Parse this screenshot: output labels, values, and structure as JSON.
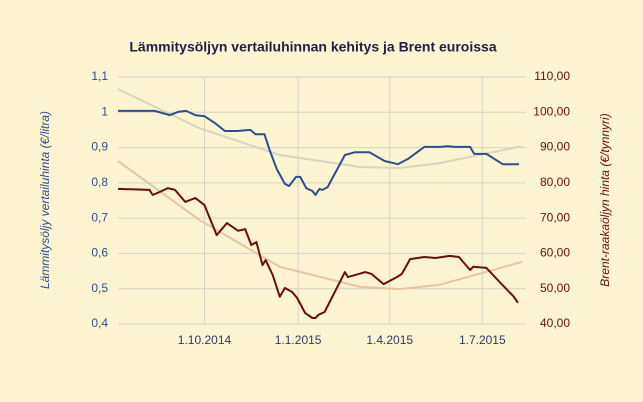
{
  "chart_data": {
    "type": "line",
    "title": "Lämmitysöljyn vertailuhinnan kehitys ja Brent euroissa",
    "y_label": "Lämmitysöljy vertailuhinta (€/litra)",
    "y2_label": "Brent-raakaöljyn hinta (€/tynnyri)",
    "xlim": [
      "2014-07-08",
      "2015-08-09"
    ],
    "xticks": [
      {
        "value": "2014-10-01",
        "label": "1.10.2014"
      },
      {
        "value": "2015-01-01",
        "label": "1.1.2015"
      },
      {
        "value": "2015-04-01",
        "label": "1.4.2015"
      },
      {
        "value": "2015-07-01",
        "label": "1.7.2015"
      }
    ],
    "ylim": [
      0.4,
      1.1
    ],
    "yticks": [
      {
        "value": 0.4,
        "label": "0,4"
      },
      {
        "value": 0.5,
        "label": "0,5"
      },
      {
        "value": 0.6,
        "label": "0,6"
      },
      {
        "value": 0.7,
        "label": "0,7"
      },
      {
        "value": 0.8,
        "label": "0,8"
      },
      {
        "value": 0.9,
        "label": "0,9"
      },
      1,
      {
        "value": 1.1,
        "label": "1,1"
      }
    ],
    "y2lim": [
      40,
      110
    ],
    "y2ticks": [
      {
        "value": 40,
        "label": "40,00"
      },
      {
        "value": 50,
        "label": "50,00"
      },
      {
        "value": 60,
        "label": "60,00"
      },
      {
        "value": 70,
        "label": "70,00"
      },
      {
        "value": 80,
        "label": "80,00"
      },
      {
        "value": 90,
        "label": "90,00"
      },
      {
        "value": 100,
        "label": "100,00"
      },
      {
        "value": 110,
        "label": "110,00"
      }
    ],
    "grid": true,
    "series": [
      {
        "color": "#d9d6c0",
        "width": 2,
        "axis": "y",
        "x": [
          "2014-07-08",
          "2014-09-26",
          "2014-12-14",
          "2015-03-03",
          "2015-04-11",
          "2015-05-20",
          "2015-08-09"
        ],
        "values": [
          1.066,
          0.955,
          0.879,
          0.845,
          0.842,
          0.856,
          0.904
        ]
      },
      {
        "color": "#e6c6a0",
        "width": 2,
        "axis": "y2",
        "x": [
          "2014-07-08",
          "2014-09-26",
          "2014-12-14",
          "2015-03-03",
          "2015-04-11",
          "2015-05-20",
          "2015-08-09"
        ],
        "values": [
          86.2,
          69.5,
          56.2,
          50.5,
          49.9,
          51.1,
          57.6
        ]
      },
      {
        "color": "#2d4f8e",
        "width": 2,
        "axis": "y",
        "x": [
          "2014-07-08",
          "2014-08-13",
          "2014-08-28",
          "2014-09-05",
          "2014-09-13",
          "2014-09-22",
          "2014-10-01",
          "2014-10-11",
          "2014-10-21",
          "2014-11-02",
          "2014-11-15",
          "2014-11-20",
          "2014-11-29",
          "2014-12-04",
          "2014-12-11",
          "2014-12-19",
          "2014-12-23",
          "2014-12-30",
          "2015-01-03",
          "2015-01-09",
          "2015-01-15",
          "2015-01-18",
          "2015-01-22",
          "2015-01-25",
          "2015-01-30",
          "2015-02-16",
          "2015-02-26",
          "2015-03-12",
          "2015-03-27",
          "2015-04-09",
          "2015-04-19",
          "2015-05-05",
          "2015-05-20",
          "2015-05-28",
          "2015-06-04",
          "2015-06-19",
          "2015-06-23",
          "2015-07-05",
          "2015-07-21",
          "2015-08-06"
        ],
        "values": [
          1.004,
          1.004,
          0.992,
          1.001,
          1.004,
          0.992,
          0.989,
          0.97,
          0.947,
          0.947,
          0.95,
          0.938,
          0.938,
          0.893,
          0.839,
          0.797,
          0.791,
          0.817,
          0.817,
          0.785,
          0.777,
          0.766,
          0.783,
          0.78,
          0.788,
          0.879,
          0.887,
          0.887,
          0.862,
          0.853,
          0.868,
          0.902,
          0.902,
          0.904,
          0.902,
          0.902,
          0.882,
          0.882,
          0.853,
          0.853
        ]
      },
      {
        "color": "#6b0d0d",
        "width": 2,
        "axis": "y2",
        "x": [
          "2014-07-08",
          "2014-08-08",
          "2014-08-11",
          "2014-08-18",
          "2014-08-26",
          "2014-09-02",
          "2014-09-12",
          "2014-09-22",
          "2014-10-01",
          "2014-10-13",
          "2014-10-23",
          "2014-11-03",
          "2014-11-10",
          "2014-11-16",
          "2014-11-21",
          "2014-11-27",
          "2014-11-30",
          "2014-12-07",
          "2014-12-14",
          "2014-12-19",
          "2014-12-26",
          "2014-12-31",
          "2015-01-08",
          "2015-01-15",
          "2015-01-18",
          "2015-01-21",
          "2015-01-27",
          "2015-02-16",
          "2015-02-19",
          "2015-03-08",
          "2015-03-14",
          "2015-03-26",
          "2015-04-08",
          "2015-04-13",
          "2015-04-21",
          "2015-05-05",
          "2015-05-16",
          "2015-05-30",
          "2015-06-08",
          "2015-06-19",
          "2015-06-22",
          "2015-07-05",
          "2015-07-18",
          "2015-08-01",
          "2015-08-05"
        ],
        "values": [
          78.3,
          78.0,
          76.6,
          77.4,
          78.5,
          78.0,
          74.6,
          75.7,
          73.7,
          65.2,
          68.6,
          66.4,
          66.9,
          62.4,
          63.2,
          56.7,
          58.1,
          53.9,
          47.7,
          50.2,
          49.1,
          47.4,
          43.1,
          41.7,
          41.7,
          42.6,
          43.4,
          54.7,
          53.3,
          54.7,
          54.2,
          51.3,
          53.3,
          54.2,
          58.4,
          59.0,
          58.7,
          59.3,
          59.0,
          55.3,
          56.2,
          55.9,
          51.9,
          47.7,
          46.0
        ]
      }
    ]
  }
}
